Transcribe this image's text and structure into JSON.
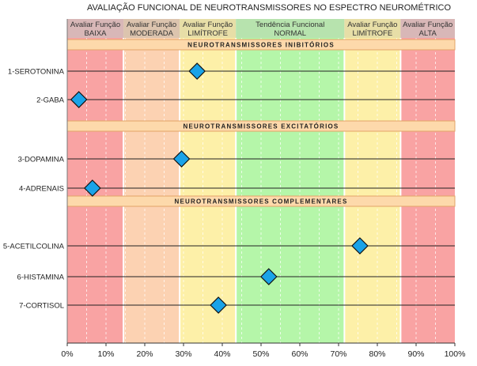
{
  "chart_data": {
    "type": "scatter",
    "title": "AVALIAÇÃO FUNCIONAL DE NEUROTRANSMISSORES NO ESPECTRO NEUROMÉTRICO",
    "xlim": [
      0,
      100
    ],
    "x_ticks": [
      "0%",
      "10%",
      "20%",
      "30%",
      "40%",
      "50%",
      "60%",
      "70%",
      "80%",
      "90%",
      "100%"
    ],
    "zones": [
      {
        "line1": "Avaliar Função",
        "line2": "BAIXA",
        "from": 0,
        "to": 14.5,
        "color": "#f9a3a3",
        "header_color": "#d8b7b7"
      },
      {
        "line1": "Avaliar Função",
        "line2": "MODERADA",
        "from": 14.5,
        "to": 29,
        "color": "#fcd2b2",
        "header_color": "#dcc4ae"
      },
      {
        "line1": "Avaliar Função",
        "line2": "LIMÍTROFE",
        "from": 29,
        "to": 43.5,
        "color": "#fdf0a8",
        "header_color": "#e7dea7"
      },
      {
        "line1": "Tendência Funcional",
        "line2": "NORMAL",
        "from": 43.5,
        "to": 71.5,
        "color": "#b5f6a9",
        "header_color": "#b7e3ae"
      },
      {
        "line1": "Avaliar Função",
        "line2": "LIMÍTROFE",
        "from": 71.5,
        "to": 86,
        "color": "#fdf0a8",
        "header_color": "#e7dea7"
      },
      {
        "line1": "Avaliar Função",
        "line2": "ALTA",
        "from": 86,
        "to": 100,
        "color": "#f9a3a3",
        "header_color": "#d8b7b7"
      }
    ],
    "sections": [
      {
        "label": "NEUROTRANSMISSORES INIBITÓRIOS",
        "after_row": 0
      },
      {
        "label": "NEUROTRANSMISSORES EXCITATÓRIOS",
        "after_row": 2
      },
      {
        "label": "NEUROTRANSMISSORES COMPLEMENTARES",
        "after_row": 4
      }
    ],
    "points": [
      {
        "label": "1-SEROTONINA",
        "x": 33.5
      },
      {
        "label": "2-GABA",
        "x": 3
      },
      {
        "label": "3-DOPAMINA",
        "x": 29.5
      },
      {
        "label": "4-ADRENAIS",
        "x": 6.5
      },
      {
        "label": "5-ACETILCOLINA",
        "x": 75.5
      },
      {
        "label": "6-HISTAMINA",
        "x": 52
      },
      {
        "label": "7-CORTISOL",
        "x": 39
      }
    ],
    "marker": "diamond",
    "marker_color": "#1aa3e8"
  }
}
